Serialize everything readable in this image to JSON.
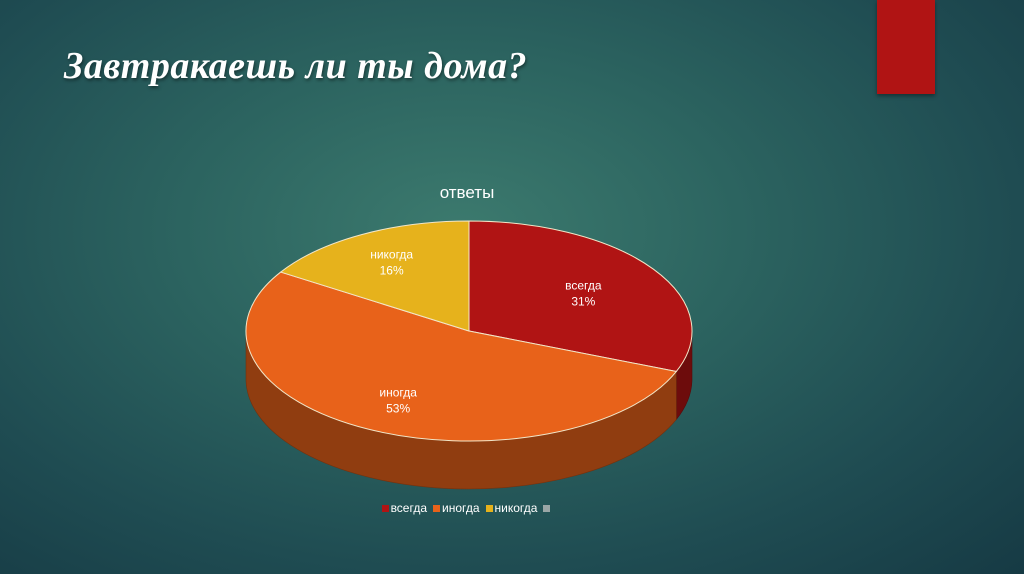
{
  "slide": {
    "title": "Завтракаешь ли ты дома?",
    "accent_color": "#b01414"
  },
  "chart_data": {
    "type": "pie",
    "title": "ответы",
    "legend_position": "bottom",
    "slices": [
      {
        "category": "всегда",
        "value": 31,
        "label": "31%",
        "color": "#b01414"
      },
      {
        "category": "иногда",
        "value": 53,
        "label": "53%",
        "color": "#e8621a"
      },
      {
        "category": "никогда",
        "value": 16,
        "label": "16%",
        "color": "#e6b21c"
      }
    ],
    "legend": [
      {
        "label": "всегда",
        "color": "#b01414"
      },
      {
        "label": "иногда",
        "color": "#e8621a"
      },
      {
        "label": "никогда",
        "color": "#e6b21c"
      },
      {
        "label": "",
        "color": "#9aa6a6"
      }
    ]
  }
}
